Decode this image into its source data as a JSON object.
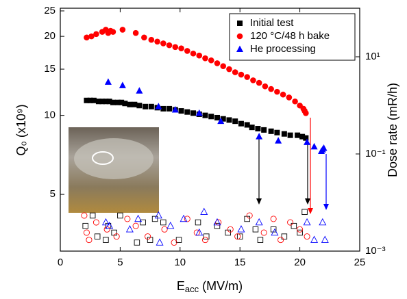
{
  "chart_data": {
    "type": "scatter",
    "xlabel": [
      "E",
      "acc",
      " (MV/m)"
    ],
    "ylabel": "Q₀ (x10⁹)",
    "y2label": "Dose rate (mR/h)",
    "xlim": [
      0,
      25
    ],
    "xticks": [
      0,
      5,
      10,
      15,
      20,
      25
    ],
    "ylim": [
      3.04,
      25.6
    ],
    "yticks": [
      5,
      10,
      15,
      20,
      25
    ],
    "ylog": true,
    "y2lim": [
      0.001,
      100
    ],
    "y2log": true,
    "y2ticks": [
      {
        "value": 0.001,
        "label": "10⁻³"
      },
      {
        "value": 0.1,
        "label": "10⁻¹"
      },
      {
        "value": 10,
        "label": "10¹"
      }
    ],
    "legend": "top-right",
    "series": [
      {
        "name": "Initial test",
        "color": "#000000",
        "marker": "square",
        "filled": true,
        "x": [
          2.2,
          2.5,
          2.8,
          3.2,
          3.5,
          3.8,
          4.1,
          4.4,
          4.8,
          5.1,
          5.4,
          5.8,
          6.2,
          6.6,
          7.1,
          7.6,
          8.1,
          8.6,
          9.1,
          9.6,
          10.1,
          10.6,
          11.1,
          11.6,
          12.1,
          12.6,
          13.1,
          13.6,
          14.1,
          14.6,
          15.1,
          15.6,
          16.0,
          16.5,
          17.0,
          17.6,
          18.1,
          18.7,
          19.2,
          19.8,
          20.2,
          20.5
        ],
        "values": [
          11.4,
          11.4,
          11.4,
          11.3,
          11.3,
          11.3,
          11.3,
          11.2,
          11.2,
          11.2,
          11.1,
          11.0,
          11.0,
          10.9,
          10.8,
          10.8,
          10.7,
          10.6,
          10.6,
          10.5,
          10.4,
          10.3,
          10.2,
          10.1,
          10.0,
          9.9,
          9.8,
          9.7,
          9.6,
          9.5,
          9.3,
          9.2,
          9.0,
          8.9,
          8.8,
          8.7,
          8.6,
          8.5,
          8.4,
          8.4,
          8.3,
          8.2
        ]
      },
      {
        "name": "120 °C/48 h bake",
        "color": "#ff0000",
        "marker": "circle",
        "filled": true,
        "x": [
          2.2,
          2.6,
          3.0,
          3.5,
          3.8,
          4.0,
          4.2,
          4.4,
          5.2,
          6.3,
          7.0,
          7.6,
          8.1,
          8.6,
          9.1,
          9.6,
          10.1,
          10.6,
          11.1,
          11.6,
          12.1,
          12.6,
          13.1,
          13.6,
          14.1,
          14.6,
          15.1,
          15.6,
          16.1,
          16.6,
          17.1,
          17.6,
          18.1,
          18.6,
          19.1,
          19.6,
          20.0,
          20.3,
          20.4,
          20.5
        ],
        "values": [
          19.8,
          20.0,
          20.4,
          20.8,
          21.2,
          20.6,
          21.0,
          20.8,
          21.2,
          20.6,
          19.8,
          19.4,
          19.1,
          18.8,
          18.5,
          18.2,
          18.0,
          17.6,
          17.2,
          16.9,
          16.5,
          16.2,
          15.8,
          15.4,
          15.0,
          14.6,
          14.3,
          14.0,
          13.6,
          13.3,
          12.9,
          12.6,
          12.3,
          12.0,
          11.7,
          11.3,
          10.9,
          10.6,
          10.4,
          10.2
        ]
      },
      {
        "name": "He processing",
        "color": "#0000ff",
        "marker": "triangle",
        "filled": true,
        "x": [
          4.0,
          5.2,
          6.6,
          8.2,
          9.6,
          11.6,
          13.4,
          16.6,
          18.2,
          20.6,
          21.2,
          21.8,
          21.9,
          22.0
        ],
        "values": [
          13.4,
          13.0,
          12.4,
          10.8,
          10.5,
          10.2,
          9.5,
          8.3,
          8.0,
          7.9,
          7.6,
          7.3,
          7.4,
          7.5
        ]
      },
      {
        "color": "#000000",
        "marker": "square",
        "filled": false,
        "axis": "y2",
        "x": [
          2.1,
          2.7,
          3.1,
          3.8,
          4.0,
          4.5,
          5.0,
          6.4,
          6.9,
          7.5,
          7.9,
          8.6,
          9.9,
          11.5,
          12.2,
          13.1,
          14.0,
          15.0,
          15.6,
          16.3,
          16.7,
          17.8,
          18.7,
          19.5,
          20.0,
          20.4
        ],
        "values": [
          0.0033,
          0.0054,
          0.002,
          0.0017,
          0.0033,
          0.0024,
          0.0054,
          0.0015,
          0.0039,
          0.0017,
          0.0046,
          0.0039,
          0.0017,
          0.0039,
          0.002,
          0.0033,
          0.0024,
          0.002,
          0.0046,
          0.0028,
          0.0017,
          0.0028,
          0.002,
          0.0033,
          0.0024,
          0.0064
        ]
      },
      {
        "color": "#ff0000",
        "marker": "circle",
        "filled": false,
        "axis": "y2",
        "x": [
          2.0,
          2.2,
          2.4,
          3.0,
          3.9,
          4.7,
          5.6,
          6.3,
          7.3,
          8.7,
          9.5,
          10.6,
          11.4,
          12.1,
          13.2,
          14.2,
          14.8,
          15.8,
          17.0,
          17.8,
          18.4,
          19.2,
          20.0,
          20.6
        ],
        "values": [
          0.0054,
          0.0024,
          0.0017,
          0.0039,
          0.0028,
          0.002,
          0.0046,
          0.0033,
          0.002,
          0.0028,
          0.0015,
          0.0046,
          0.0024,
          0.0017,
          0.0039,
          0.0028,
          0.002,
          0.0054,
          0.0024,
          0.0046,
          0.0017,
          0.0039,
          0.0028,
          0.002
        ]
      },
      {
        "color": "#0000ff",
        "marker": "triangle",
        "filled": false,
        "axis": "y2",
        "x": [
          3.8,
          4.1,
          5.8,
          6.5,
          8.2,
          8.3,
          9.2,
          10.3,
          11.6,
          12.0,
          13.1,
          15.1,
          16.6,
          17.9,
          20.6,
          21.2,
          21.9,
          22.1
        ],
        "values": [
          0.0039,
          0.0033,
          0.0028,
          0.0046,
          0.0054,
          0.0015,
          0.0033,
          0.0046,
          0.0024,
          0.0064,
          0.0039,
          0.0028,
          0.0039,
          0.0024,
          0.0039,
          0.0017,
          0.0039,
          0.0017
        ]
      }
    ]
  }
}
